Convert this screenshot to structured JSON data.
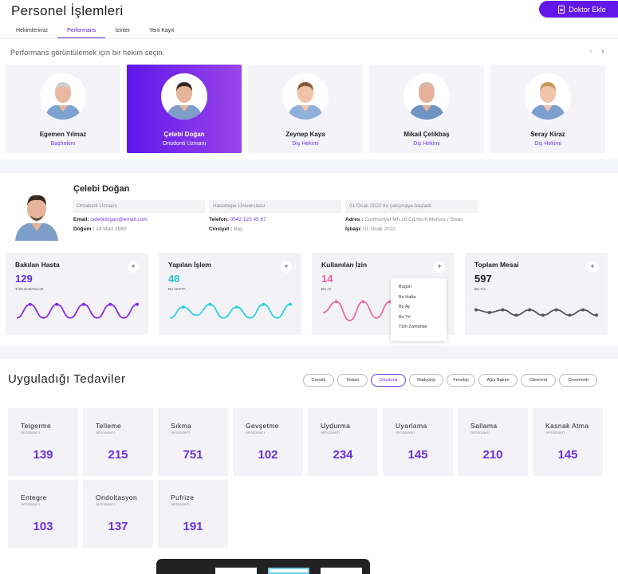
{
  "header": {
    "title": "Personel İşlemleri",
    "add_button": "Doktor Ekle",
    "tabs": [
      {
        "label": "Hekimlerimiz",
        "active": false
      },
      {
        "label": "Performans",
        "active": true
      },
      {
        "label": "İzinler",
        "active": false
      },
      {
        "label": "Yeni Kayıt",
        "active": false
      }
    ],
    "hint": "Performans görüntülemek için bir hekim seçin.",
    "prev_icon": "‹",
    "next_icon": "›"
  },
  "doctors": [
    {
      "name": "Egemen Yılmaz",
      "role": "Başhekim",
      "active": false,
      "shirt": "#7ea3cf",
      "hair": "#cfcfcf",
      "skin": "#e9b9a0"
    },
    {
      "name": "Çelebi Doğan",
      "role": "Ortodonti Uzmanı",
      "active": true,
      "shirt": "#7c9ec8",
      "hair": "#3b2a22",
      "skin": "#e6b49a"
    },
    {
      "name": "Zeynep Kaya",
      "role": "Diş Hekimi",
      "active": false,
      "shirt": "#8fb0d8",
      "hair": "#8a5a3a",
      "skin": "#f0c3a8"
    },
    {
      "name": "Mikail Çelikbaş",
      "role": "Diş Hekimi",
      "active": false,
      "shirt": "#6f93c2",
      "hair": "#d9b9a8",
      "skin": "#e4b09a"
    },
    {
      "name": "Seray Kiraz",
      "role": "Diş Hekimi",
      "active": false,
      "shirt": "#7c9fd0",
      "hair": "#c89a5a",
      "skin": "#f0c4aa"
    }
  ],
  "profile": {
    "name": "Çelebi Doğan",
    "specialty": "Ortodonti Uzmanı",
    "school": "Hacettepe Üniversitesi",
    "start": "01 Ocak 2022'de çalışmaya başladı",
    "email_label": "Email:",
    "email": "celebidogan@email.com",
    "birth_label": "Doğum :",
    "birth": "14 Mart 1980",
    "phone_label": "Telefon:",
    "phone": "0542 123 45 67",
    "gender_label": "Cinsiyet :",
    "gender": "Bay",
    "address_label": "Adres :",
    "address": "Cumhuriyet Mh.18 Cd.No:6 Merkez / Sivas",
    "hire_label": "İşbaşı:",
    "hire": "01 Ocak 2022"
  },
  "stats": [
    {
      "title": "Bakılan Hasta",
      "value": "129",
      "sub": "TÜM ZAMANLAR",
      "color": "#5b2ee6",
      "line": "#8b2be8",
      "values": [
        3,
        8,
        3,
        8,
        3,
        8,
        3,
        8,
        3,
        8
      ]
    },
    {
      "title": "Yapılan İşlem",
      "value": "48",
      "sub": "BU HAFTA",
      "color": "#22c7d6",
      "line": "#2ad3e0",
      "values": [
        3,
        7,
        4,
        8,
        3,
        7,
        3,
        8,
        3,
        8
      ]
    },
    {
      "title": "Kullanılan İzin",
      "value": "14",
      "sub": "BU AY",
      "color": "#f05aa5",
      "line": "#f06aa8",
      "values": [
        5,
        9,
        2,
        9,
        3,
        9,
        2,
        8,
        4,
        8
      ]
    },
    {
      "title": "Toplam Mesai",
      "value": "597",
      "sub": "BU YIL",
      "color": "#222222",
      "line": "#555555",
      "values": [
        6,
        5,
        6,
        4,
        6,
        4,
        6,
        4,
        6,
        4
      ]
    }
  ],
  "plus_label": "+",
  "period_menu": [
    "Bugün",
    "Bu Hafta",
    "Bu Ay",
    "Bu Yıl",
    "Tüm Zamanlar"
  ],
  "treatments_section": {
    "title": "Uyguladığı Tedaviler",
    "filters": [
      {
        "label": "Cerrahi",
        "active": false
      },
      {
        "label": "Tedavi",
        "active": false
      },
      {
        "label": "Ortodonti",
        "active": true
      },
      {
        "label": "Radyoloji",
        "active": false
      },
      {
        "label": "Fenoloji",
        "active": false
      },
      {
        "label": "Ağız Bakım",
        "active": false
      },
      {
        "label": "Cleoronti",
        "active": false
      },
      {
        "label": "Ceromonti",
        "active": false
      }
    ],
    "items": [
      {
        "name": "Telgerme",
        "cat": "ORTODONTİ",
        "count": "139"
      },
      {
        "name": "Telleme",
        "cat": "ORTODONTİ",
        "count": "215"
      },
      {
        "name": "Sıkma",
        "cat": "ORTODONTİ",
        "count": "751"
      },
      {
        "name": "Gevşetme",
        "cat": "ORTODONTİ",
        "count": "102"
      },
      {
        "name": "Uydurma",
        "cat": "ORTODONTİ",
        "count": "234"
      },
      {
        "name": "Uyarlama",
        "cat": "ORTODONTİ",
        "count": "145"
      },
      {
        "name": "Sallama",
        "cat": "ORTODONTİ",
        "count": "210"
      },
      {
        "name": "Kasnak Atma",
        "cat": "ORTODONTİ",
        "count": "145"
      },
      {
        "name": "Entegre",
        "cat": "ORTODONTİ",
        "count": "103"
      },
      {
        "name": "Ondoltasyon",
        "cat": "ORTODONTİ",
        "count": "137"
      },
      {
        "name": "Pufrize",
        "cat": "ORTODONTİ",
        "count": "191"
      }
    ]
  },
  "colors": {
    "accent": "#6118e8",
    "accent_light": "#9a45e8"
  }
}
